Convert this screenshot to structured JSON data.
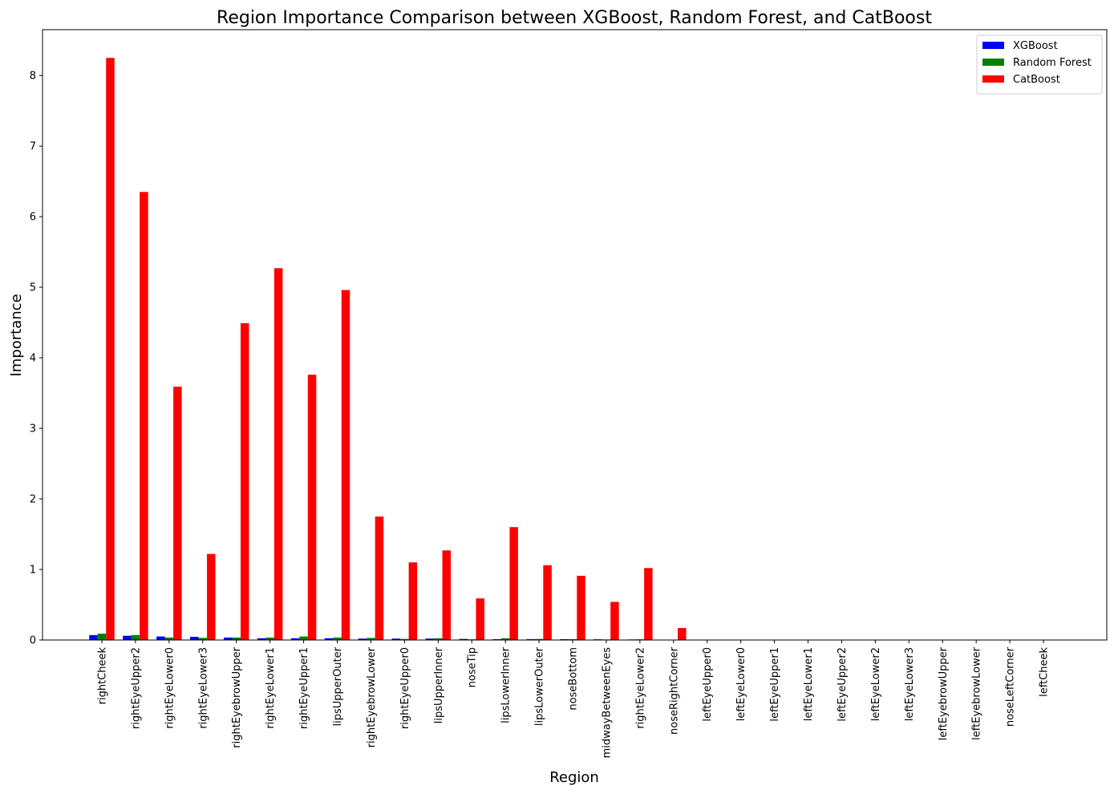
{
  "chart_data": {
    "type": "bar",
    "title": "Region Importance Comparison between XGBoost, Random Forest, and CatBoost",
    "xlabel": "Region",
    "ylabel": "Importance",
    "ylim": [
      0,
      8.65
    ],
    "yticks": [
      0,
      1,
      2,
      3,
      4,
      5,
      6,
      7,
      8
    ],
    "grid": false,
    "legend_position": "top-right",
    "categories": [
      "rightCheek",
      "rightEyeUpper2",
      "rightEyeLower0",
      "rightEyeLower3",
      "rightEyebrowUpper",
      "rightEyeLower1",
      "rightEyeUpper1",
      "lipsUpperOuter",
      "rightEyebrowLower",
      "rightEyeUpper0",
      "lipsUpperInner",
      "noseTip",
      "lipsLowerInner",
      "lipsLowerOuter",
      "noseBottom",
      "midwayBetweenEyes",
      "rightEyeLower2",
      "noseRightCorner",
      "leftEyeUpper0",
      "leftEyeLower0",
      "leftEyeUpper1",
      "leftEyeLower1",
      "leftEyeUpper2",
      "leftEyeLower2",
      "leftEyeLower3",
      "leftEyebrowUpper",
      "leftEyebrowLower",
      "noseLeftCorner",
      "leftCheek"
    ],
    "series": [
      {
        "name": "XGBoost",
        "color": "#0000ff",
        "values": [
          0.07,
          0.06,
          0.05,
          0.045,
          0.035,
          0.025,
          0.025,
          0.025,
          0.02,
          0.02,
          0.02,
          0.015,
          0.012,
          0.012,
          0.012,
          0.01,
          0.008,
          0,
          0,
          0,
          0,
          0,
          0,
          0,
          0,
          0,
          0,
          0,
          0
        ]
      },
      {
        "name": "Random Forest",
        "color": "#008000",
        "values": [
          0.09,
          0.07,
          0.035,
          0.03,
          0.035,
          0.035,
          0.05,
          0.035,
          0.03,
          0.015,
          0.025,
          0.01,
          0.025,
          0.015,
          0.012,
          0.008,
          0.01,
          0,
          0,
          0,
          0,
          0,
          0,
          0,
          0,
          0,
          0,
          0,
          0
        ]
      },
      {
        "name": "CatBoost",
        "color": "#ff0000",
        "values": [
          8.25,
          6.35,
          3.59,
          1.22,
          4.49,
          5.27,
          3.76,
          4.96,
          1.75,
          1.1,
          1.27,
          0.59,
          1.6,
          1.06,
          0.91,
          0.54,
          1.02,
          0.17,
          0,
          0,
          0,
          0,
          0,
          0,
          0,
          0,
          0,
          0,
          0
        ]
      }
    ]
  }
}
